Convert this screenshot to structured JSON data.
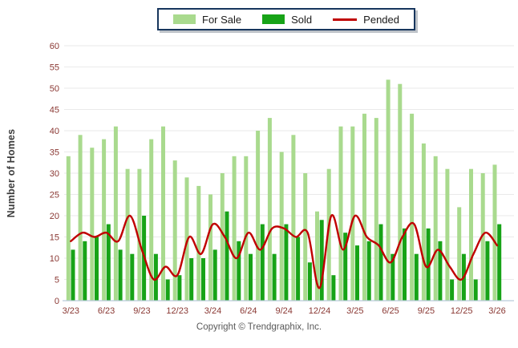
{
  "legend": {
    "items": [
      {
        "label": "For Sale",
        "marker": "swatch",
        "color": "#a9da8e"
      },
      {
        "label": "Sold",
        "marker": "swatch",
        "color": "#17a317"
      },
      {
        "label": "Pended",
        "marker": "line",
        "color": "#c00000"
      }
    ]
  },
  "y_axis": {
    "title": "Number of Homes",
    "ticks": [
      0,
      5,
      10,
      15,
      20,
      25,
      30,
      35,
      40,
      45,
      50,
      55,
      60
    ],
    "label_color": "#8a3833"
  },
  "x_axis": {
    "tick_labels": [
      "3/23",
      "6/23",
      "9/23",
      "12/23",
      "3/24",
      "6/24",
      "9/24",
      "12/24",
      "3/25",
      "6/25",
      "9/25",
      "12/25",
      "3/26"
    ],
    "label_color": "#8a3833"
  },
  "footer": {
    "copyright": "Copyright © Trendgraphix, Inc."
  },
  "colors": {
    "for_sale": "#a9da8e",
    "sold": "#17a317",
    "pended": "#c00000",
    "gridline": "#eaeaea",
    "baseline": "#b9cbd9"
  },
  "chart_data": {
    "type": "bar",
    "title": "",
    "xlabel": "",
    "ylabel": "Number of Homes",
    "ylim": [
      0,
      60
    ],
    "grid": true,
    "legend_position": "top",
    "categories": [
      "3/23",
      "4/23",
      "5/23",
      "6/23",
      "7/23",
      "8/23",
      "9/23",
      "10/23",
      "11/23",
      "12/23",
      "1/24",
      "2/24",
      "3/24",
      "4/24",
      "5/24",
      "6/24",
      "7/24",
      "8/24",
      "9/24",
      "10/24",
      "11/24",
      "12/24",
      "1/25",
      "2/25",
      "3/25",
      "4/25",
      "5/25",
      "6/25",
      "7/25",
      "8/25",
      "9/25",
      "10/25",
      "11/25",
      "12/25",
      "1/26",
      "2/26",
      "3/26"
    ],
    "series": [
      {
        "name": "For Sale",
        "type": "bar",
        "color": "#a9da8e",
        "values": [
          34,
          39,
          36,
          38,
          41,
          31,
          31,
          38,
          41,
          33,
          29,
          27,
          25,
          30,
          34,
          34,
          40,
          43,
          35,
          39,
          30,
          21,
          31,
          41,
          41,
          44,
          43,
          52,
          51,
          44,
          37,
          34,
          31,
          22,
          31,
          30,
          32
        ]
      },
      {
        "name": "Sold",
        "type": "bar",
        "color": "#17a317",
        "values": [
          12,
          14,
          15,
          18,
          12,
          11,
          20,
          11,
          5,
          6,
          10,
          10,
          12,
          21,
          14,
          11,
          18,
          11,
          18,
          15,
          9,
          19,
          6,
          16,
          13,
          14,
          18,
          11,
          17,
          11,
          17,
          14,
          5,
          11,
          5,
          14,
          18
        ]
      },
      {
        "name": "Pended",
        "type": "line",
        "color": "#c00000",
        "values": [
          14,
          16,
          15,
          16,
          14,
          20,
          12,
          5,
          8,
          6,
          15,
          11,
          18,
          15,
          10,
          16,
          12,
          17,
          17,
          15,
          16,
          3,
          20,
          12,
          20,
          15,
          13,
          9,
          15,
          18,
          8,
          12,
          8,
          5,
          11,
          16,
          13
        ]
      }
    ]
  }
}
